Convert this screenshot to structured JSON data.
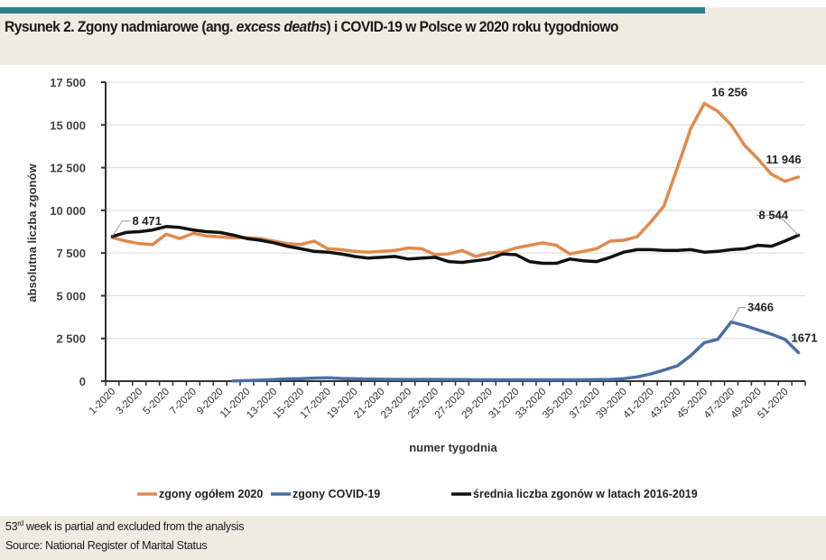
{
  "header": {
    "title_prefix": "Rysunek 2. Zgony nadmiarowe (ang. ",
    "title_italic": "excess deaths",
    "title_suffix": ") i COVID-19 w Polsce w 2020 roku tygodniowo"
  },
  "footer": {
    "note_num": "53",
    "note_sup": "rd",
    "note_rest": " week is partial and excluded from the analysis",
    "source": "Source: National Register of Marital Status"
  },
  "colors": {
    "total_2020": "#e08a4f",
    "covid": "#4a6fa5",
    "average": "#111111",
    "grid": "#d9d9d9",
    "accent_bar": "#2f7f8f",
    "band": "#efebe1"
  },
  "chart_data": {
    "type": "line",
    "title": "Rysunek 2. Zgony nadmiarowe (ang. excess deaths) i COVID-19 w Polsce w 2020 roku tygodniowo",
    "xlabel": "numer tygodnia",
    "ylabel": "absolutna liczba zgonów",
    "ylim": [
      0,
      17500
    ],
    "yticks": [
      0,
      2500,
      5000,
      7500,
      10000,
      12500,
      15000,
      17500
    ],
    "ytick_labels": [
      "0",
      "2 500",
      "5 000",
      "7 500",
      "10 000",
      "12 500",
      "15 000",
      "17 500"
    ],
    "grid": true,
    "legend_position": "bottom",
    "x": [
      1,
      2,
      3,
      4,
      5,
      6,
      7,
      8,
      9,
      10,
      11,
      12,
      13,
      14,
      15,
      16,
      17,
      18,
      19,
      20,
      21,
      22,
      23,
      24,
      25,
      26,
      27,
      28,
      29,
      30,
      31,
      32,
      33,
      34,
      35,
      36,
      37,
      38,
      39,
      40,
      41,
      42,
      43,
      44,
      45,
      46,
      47,
      48,
      49,
      50,
      51,
      52
    ],
    "xtick_labels": [
      "1-2020",
      "3-2020",
      "5-2020",
      "7-2020",
      "9-2020",
      "11-2020",
      "13-2020",
      "15-2020",
      "17-2020",
      "19-2020",
      "21-2020",
      "23-2020",
      "25-2020",
      "27-2020",
      "29-2020",
      "31-2020",
      "33-2020",
      "35-2020",
      "37-2020",
      "39-2020",
      "41-2020",
      "43-2020",
      "45-2020",
      "47-2020",
      "49-2020",
      "51-2020"
    ],
    "series": [
      {
        "name": "zgony ogółem 2020",
        "color": "#e08a4f",
        "values": [
          8400,
          8200,
          8050,
          8000,
          8600,
          8350,
          8650,
          8500,
          8450,
          8400,
          8400,
          8350,
          8200,
          8050,
          8000,
          8200,
          7750,
          7700,
          7600,
          7550,
          7600,
          7650,
          7800,
          7750,
          7400,
          7450,
          7650,
          7300,
          7500,
          7550,
          7800,
          7950,
          8100,
          7950,
          7450,
          7600,
          7750,
          8200,
          8250,
          8450,
          9300,
          10250,
          12500,
          14800,
          16256,
          15800,
          15000,
          13800,
          13000,
          12100,
          11700,
          11946
        ]
      },
      {
        "name": "zgony COVID-19",
        "color": "#4a6fa5",
        "values": [
          null,
          null,
          null,
          null,
          null,
          null,
          null,
          null,
          null,
          10,
          30,
          60,
          90,
          130,
          150,
          180,
          200,
          160,
          140,
          120,
          110,
          100,
          100,
          100,
          100,
          90,
          90,
          80,
          80,
          80,
          80,
          80,
          80,
          80,
          80,
          80,
          90,
          100,
          150,
          250,
          420,
          650,
          900,
          1500,
          2250,
          2450,
          3466,
          3250,
          3000,
          2750,
          2450,
          1671
        ]
      },
      {
        "name": "średnia liczba zgonów w latach 2016-2019",
        "color": "#111111",
        "values": [
          8471,
          8700,
          8750,
          8850,
          9050,
          9000,
          8850,
          8750,
          8700,
          8550,
          8350,
          8250,
          8100,
          7900,
          7750,
          7600,
          7550,
          7450,
          7300,
          7200,
          7250,
          7300,
          7150,
          7200,
          7250,
          7000,
          6950,
          7050,
          7150,
          7450,
          7400,
          7000,
          6900,
          6900,
          7150,
          7050,
          7000,
          7250,
          7550,
          7700,
          7700,
          7650,
          7650,
          7700,
          7550,
          7600,
          7700,
          7750,
          7950,
          7900,
          8200,
          8544
        ]
      }
    ],
    "annotations": [
      {
        "series": "średnia liczba zgonów w latach 2016-2019",
        "x": 1,
        "label": "8 471"
      },
      {
        "series": "zgony ogółem 2020",
        "x": 45,
        "label": "16 256"
      },
      {
        "series": "zgony ogółem 2020",
        "x": 52,
        "label": "11 946"
      },
      {
        "series": "średnia liczba zgonów w latach 2016-2019",
        "x": 52,
        "label": "8 544"
      },
      {
        "series": "zgony COVID-19",
        "x": 47,
        "label": "3466"
      },
      {
        "series": "zgony COVID-19",
        "x": 52,
        "label": "1671"
      }
    ]
  }
}
